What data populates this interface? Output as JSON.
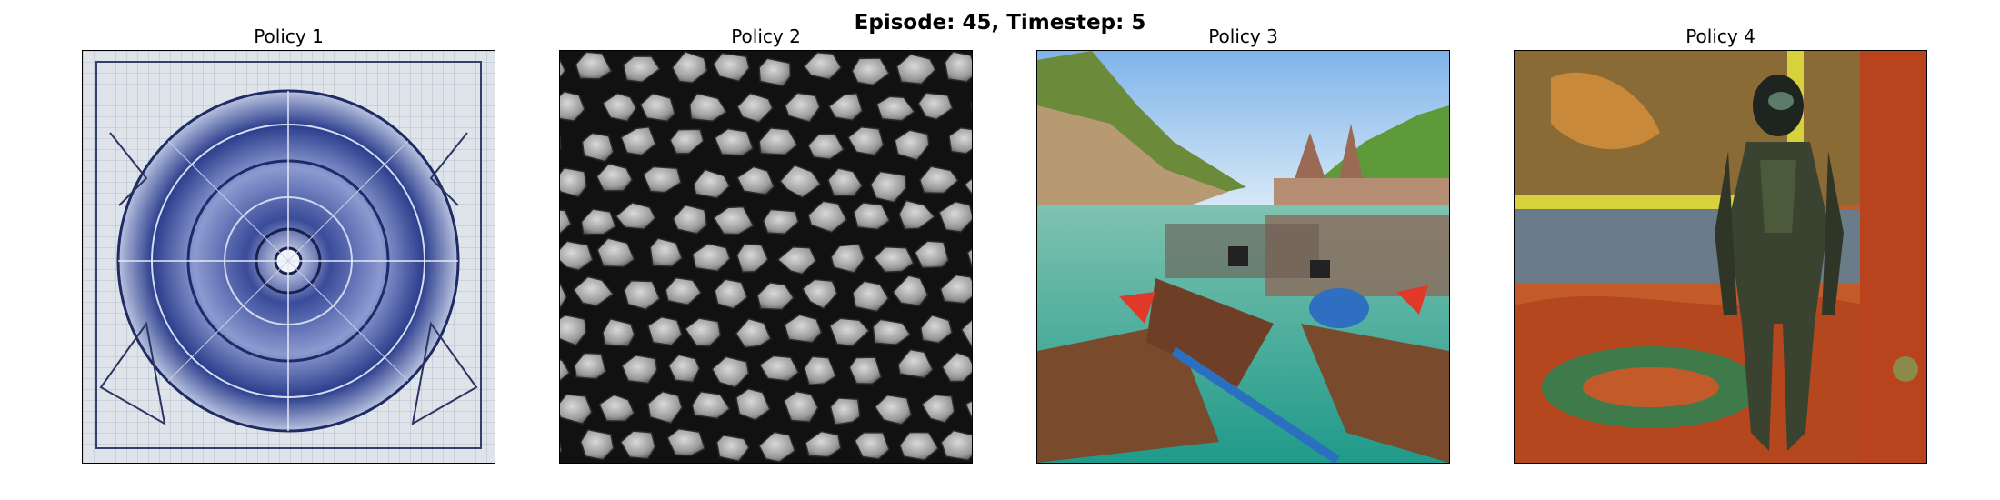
{
  "figure": {
    "title": "Episode: 45, Timestep: 5"
  },
  "panels": [
    {
      "title": "Policy 1",
      "image": "blueprint-circular-machine"
    },
    {
      "title": "Policy 2",
      "image": "cobblestone-texture"
    },
    {
      "title": "Policy 3",
      "image": "river-harbor-boats-crowd"
    },
    {
      "title": "Policy 4",
      "image": "painted-armored-figure"
    }
  ]
}
